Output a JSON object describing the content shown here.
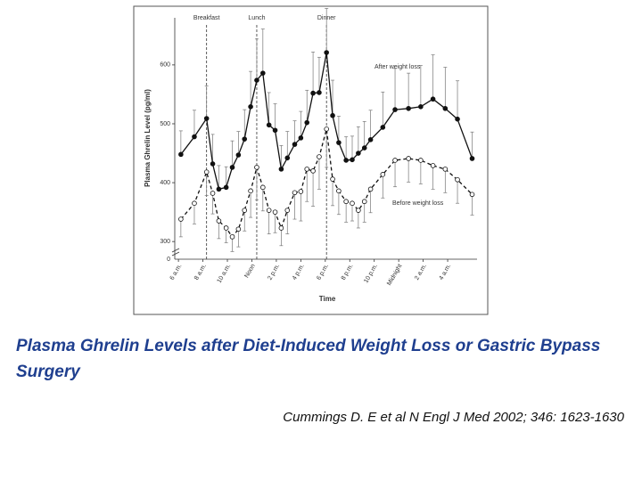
{
  "chart_data": {
    "type": "line",
    "ylabel": "Plasma Ghrelin Level (pg/ml)",
    "xlabel": "Time",
    "xlim": [
      -0.3,
      24.4
    ],
    "xticks": [
      {
        "value": 0,
        "label": "6 a.m."
      },
      {
        "value": 2,
        "label": "8 a.m."
      },
      {
        "value": 4,
        "label": "10 a.m."
      },
      {
        "value": 6,
        "label": "Noon"
      },
      {
        "value": 8,
        "label": "2 p.m."
      },
      {
        "value": 10,
        "label": "4 p.m."
      },
      {
        "value": 12,
        "label": "6 p.m."
      },
      {
        "value": 14,
        "label": "8 p.m."
      },
      {
        "value": 16,
        "label": "10 p.m."
      },
      {
        "value": 18,
        "label": "Midnight"
      },
      {
        "value": 20,
        "label": "2 a.m."
      },
      {
        "value": 22,
        "label": "4 a.m."
      }
    ],
    "ylim": [
      270,
      680
    ],
    "yticks": [
      300,
      400,
      500,
      600
    ],
    "axis_break_label": "0",
    "meals": [
      {
        "label": "Breakfast",
        "x": 2.3
      },
      {
        "label": "Lunch",
        "x": 6.4
      },
      {
        "label": "Dinner",
        "x": 12.1
      }
    ],
    "x": [
      0.2,
      1.3,
      2.3,
      2.8,
      3.3,
      3.9,
      4.4,
      4.9,
      5.4,
      5.9,
      6.4,
      6.9,
      7.4,
      7.9,
      8.4,
      8.9,
      9.5,
      10,
      10.5,
      11,
      11.5,
      12.1,
      12.6,
      13.1,
      13.7,
      14.2,
      14.7,
      15.2,
      15.7,
      16.7,
      17.7,
      18.8,
      19.8,
      20.8,
      21.8,
      22.8,
      24
    ],
    "series": [
      {
        "name": "After weight loss",
        "color": "#111111",
        "marker": "filled",
        "dash": false,
        "error_side": "up",
        "values": [
          448,
          478,
          509,
          432,
          389,
          392,
          426,
          447,
          474,
          529,
          574,
          586,
          498,
          489,
          423,
          442,
          465,
          476,
          502,
          552,
          553,
          621,
          514,
          468,
          438,
          439,
          450,
          459,
          473,
          494,
          524,
          526,
          529,
          542,
          526,
          508,
          441
        ],
        "errors": [
          40,
          45,
          55,
          50,
          40,
          35,
          45,
          40,
          50,
          60,
          70,
          75,
          55,
          45,
          40,
          45,
          40,
          45,
          55,
          70,
          60,
          75,
          60,
          45,
          40,
          40,
          45,
          45,
          50,
          60,
          70,
          60,
          70,
          75,
          70,
          65,
          45
        ]
      },
      {
        "name": "Before weight loss",
        "color": "#111111",
        "marker": "open",
        "dash": true,
        "error_side": "down",
        "values": [
          338,
          365,
          418,
          382,
          335,
          323,
          308,
          321,
          353,
          386,
          426,
          392,
          353,
          350,
          323,
          353,
          383,
          385,
          423,
          420,
          444,
          491,
          406,
          386,
          368,
          365,
          353,
          368,
          389,
          414,
          438,
          441,
          438,
          429,
          423,
          405,
          380
        ],
        "errors": [
          30,
          35,
          40,
          35,
          30,
          25,
          25,
          30,
          35,
          45,
          55,
          40,
          40,
          35,
          30,
          40,
          45,
          50,
          55,
          60,
          55,
          65,
          45,
          40,
          35,
          30,
          30,
          35,
          40,
          40,
          45,
          40,
          40,
          40,
          40,
          40,
          35
        ]
      }
    ],
    "title": "Plasma Ghrelin Levels after Diet-Induced Weight Loss or Gastric Bypass Surgery",
    "citation": "Cummings D. E et al N Engl J Med 2002; 346: 1623-1630"
  }
}
